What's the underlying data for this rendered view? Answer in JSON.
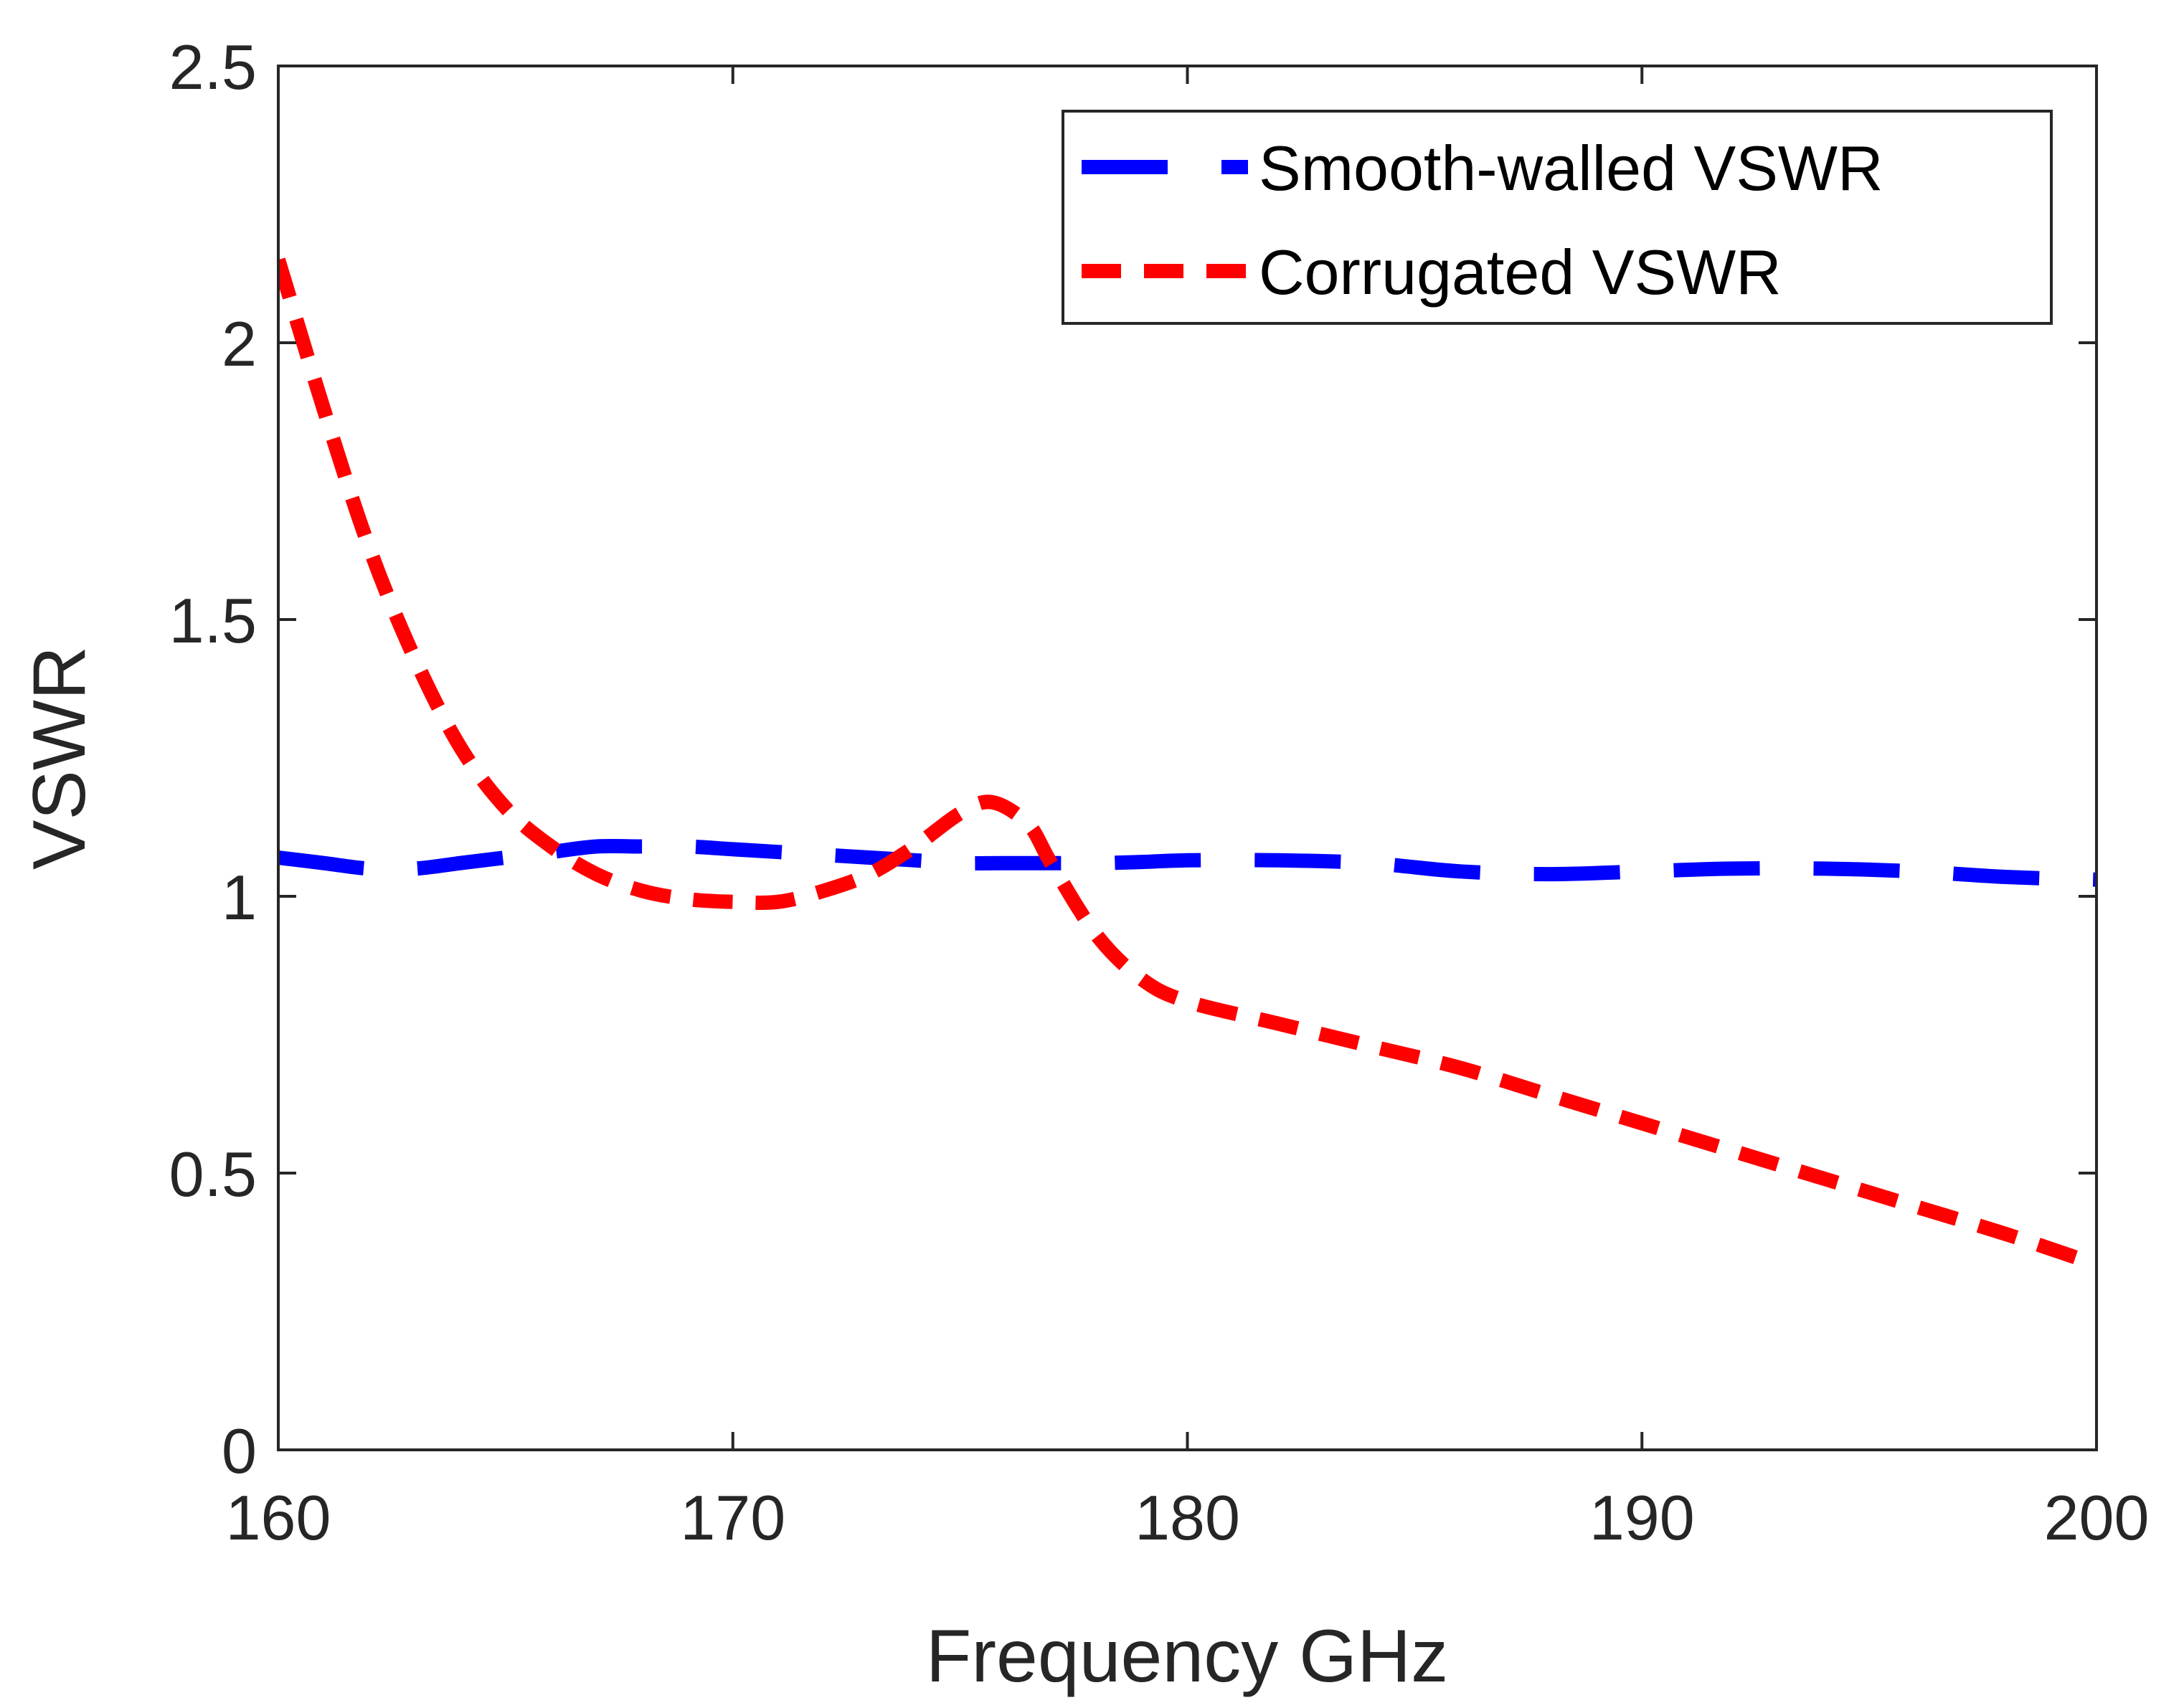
{
  "chart_data": {
    "type": "line",
    "title": "",
    "xlabel": "Frequency GHz",
    "ylabel": "VSWR",
    "xlim": [
      160,
      200
    ],
    "ylim": [
      0,
      2.5
    ],
    "xticks": [
      160,
      170,
      180,
      190,
      200
    ],
    "yticks": [
      0,
      0.5,
      1,
      1.5,
      2,
      2.5
    ],
    "xtick_labels": [
      "160",
      "170",
      "180",
      "190",
      "200"
    ],
    "ytick_labels": [
      "0",
      "0.5",
      "1",
      "1.5",
      "2",
      "2.5"
    ],
    "grid": false,
    "legend_position": "top-right",
    "series": [
      {
        "name": "Smooth-walled VSWR",
        "color": "#0000ff",
        "dash": "long-dash",
        "x": [
          160,
          161,
          162,
          163,
          164,
          165,
          166,
          167,
          168,
          169,
          170,
          171,
          172,
          173,
          174,
          175,
          176,
          177,
          178,
          179,
          180,
          182,
          184,
          186,
          188,
          190,
          192,
          194,
          196,
          198,
          200
        ],
        "y": [
          1.07,
          1.06,
          1.05,
          1.05,
          1.06,
          1.07,
          1.08,
          1.09,
          1.09,
          1.09,
          1.085,
          1.08,
          1.075,
          1.07,
          1.065,
          1.06,
          1.06,
          1.06,
          1.06,
          1.062,
          1.065,
          1.065,
          1.06,
          1.045,
          1.04,
          1.045,
          1.05,
          1.05,
          1.045,
          1.035,
          1.03
        ]
      },
      {
        "name": "Corrugated VSWR",
        "color": "#ff0000",
        "dash": "short-dash",
        "x": [
          160,
          161,
          162,
          163,
          164,
          165,
          166,
          167,
          168,
          169,
          170,
          171,
          172,
          173,
          174,
          175,
          175.7,
          176.5,
          177,
          178,
          179,
          180,
          182,
          184,
          186,
          188,
          190,
          192,
          194,
          196,
          198,
          200
        ],
        "y": [
          2.15,
          1.88,
          1.63,
          1.43,
          1.27,
          1.16,
          1.09,
          1.04,
          1.01,
          0.995,
          0.99,
          0.99,
          1.01,
          1.04,
          1.09,
          1.15,
          1.17,
          1.13,
          1.06,
          0.93,
          0.85,
          0.81,
          0.77,
          0.73,
          0.69,
          0.64,
          0.59,
          0.54,
          0.49,
          0.44,
          0.39,
          0.335
        ]
      }
    ]
  }
}
